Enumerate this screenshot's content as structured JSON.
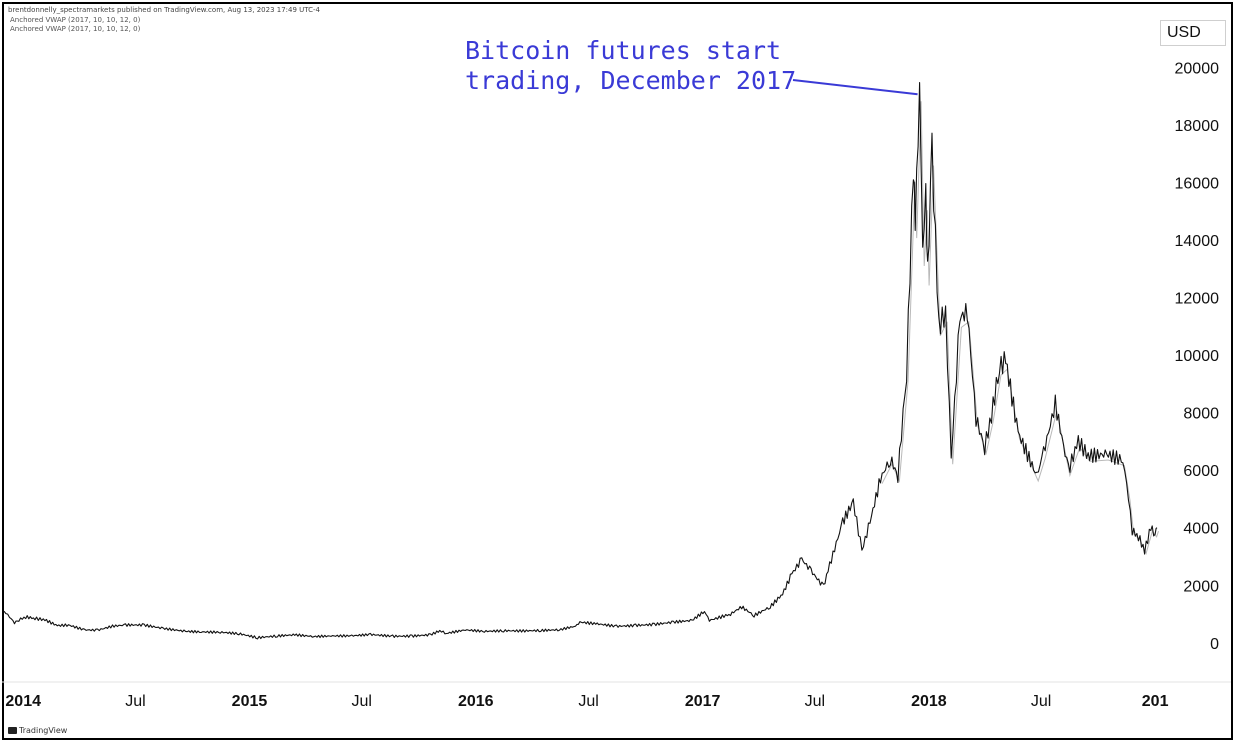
{
  "header": {
    "published_text": "brentdonnelly_spectramarkets published on TradingView.com, Aug 13, 2023 17:49 UTC-4",
    "indicators": [
      "Anchored VWAP (2017, 10, 10, 12, 0)",
      "Anchored VWAP (2017, 10, 10, 12, 0)"
    ]
  },
  "currency_label": "USD",
  "footer": {
    "brand": "TradingView"
  },
  "annotation": {
    "line1": "Bitcoin futures start",
    "line2": "trading, December 2017",
    "target": {
      "date": "2017-12-17",
      "value": 19200
    }
  },
  "colors": {
    "price": "#111111",
    "annotation": "#3a3ad6",
    "vwap": "#8a8a8a"
  },
  "chart_data": {
    "type": "line",
    "title": "",
    "xlabel": "",
    "ylabel": "",
    "ylim": [
      -700,
      20600
    ],
    "xlim": [
      "2013-12-01",
      "2019-01-04"
    ],
    "grid": false,
    "y_ticks": [
      0,
      2000,
      4000,
      6000,
      8000,
      10000,
      12000,
      14000,
      16000,
      18000,
      20000
    ],
    "x_ticks": [
      {
        "date": "2014-01-01",
        "label": "2014",
        "major": true
      },
      {
        "date": "2014-07-01",
        "label": "Jul",
        "major": false
      },
      {
        "date": "2015-01-01",
        "label": "2015",
        "major": true
      },
      {
        "date": "2015-07-01",
        "label": "Jul",
        "major": false
      },
      {
        "date": "2016-01-01",
        "label": "2016",
        "major": true
      },
      {
        "date": "2016-07-01",
        "label": "Jul",
        "major": false
      },
      {
        "date": "2017-01-01",
        "label": "2017",
        "major": true
      },
      {
        "date": "2017-07-01",
        "label": "Jul",
        "major": false
      },
      {
        "date": "2018-01-01",
        "label": "2018",
        "major": true
      },
      {
        "date": "2018-07-01",
        "label": "Jul",
        "major": false
      },
      {
        "date": "2019-01-01",
        "label": "201",
        "major": true
      }
    ],
    "series": [
      {
        "values": [
          [
            "2013-12-01",
            1100
          ],
          [
            "2013-12-10",
            900
          ],
          [
            "2013-12-18",
            700
          ],
          [
            "2013-12-25",
            800
          ],
          [
            "2014-01-05",
            900
          ],
          [
            "2014-01-20",
            850
          ],
          [
            "2014-02-05",
            800
          ],
          [
            "2014-02-25",
            600
          ],
          [
            "2014-03-15",
            620
          ],
          [
            "2014-04-10",
            450
          ],
          [
            "2014-05-01",
            440
          ],
          [
            "2014-05-25",
            580
          ],
          [
            "2014-06-15",
            620
          ],
          [
            "2014-07-15",
            620
          ],
          [
            "2014-08-15",
            500
          ],
          [
            "2014-09-20",
            400
          ],
          [
            "2014-10-15",
            380
          ],
          [
            "2014-11-15",
            370
          ],
          [
            "2014-12-15",
            320
          ],
          [
            "2015-01-14",
            180
          ],
          [
            "2015-02-15",
            240
          ],
          [
            "2015-03-15",
            280
          ],
          [
            "2015-04-15",
            220
          ],
          [
            "2015-05-15",
            240
          ],
          [
            "2015-06-15",
            245
          ],
          [
            "2015-07-15",
            290
          ],
          [
            "2015-08-20",
            230
          ],
          [
            "2015-09-20",
            235
          ],
          [
            "2015-10-20",
            280
          ],
          [
            "2015-11-04",
            420
          ],
          [
            "2015-11-15",
            330
          ],
          [
            "2015-12-15",
            450
          ],
          [
            "2016-01-15",
            400
          ],
          [
            "2016-02-15",
            420
          ],
          [
            "2016-03-15",
            415
          ],
          [
            "2016-04-15",
            430
          ],
          [
            "2016-05-15",
            455
          ],
          [
            "2016-06-10",
            580
          ],
          [
            "2016-06-17",
            720
          ],
          [
            "2016-07-15",
            660
          ],
          [
            "2016-08-15",
            575
          ],
          [
            "2016-09-15",
            605
          ],
          [
            "2016-10-15",
            640
          ],
          [
            "2016-11-15",
            720
          ],
          [
            "2016-12-15",
            780
          ],
          [
            "2017-01-04",
            1100
          ],
          [
            "2017-01-12",
            780
          ],
          [
            "2017-02-15",
            1000
          ],
          [
            "2017-03-05",
            1250
          ],
          [
            "2017-03-25",
            950
          ],
          [
            "2017-04-20",
            1250
          ],
          [
            "2017-05-10",
            1700
          ],
          [
            "2017-05-25",
            2400
          ],
          [
            "2017-06-10",
            2900
          ],
          [
            "2017-06-25",
            2500
          ],
          [
            "2017-07-15",
            1950
          ],
          [
            "2017-07-25",
            2700
          ],
          [
            "2017-08-15",
            4200
          ],
          [
            "2017-09-01",
            4900
          ],
          [
            "2017-09-15",
            3200
          ],
          [
            "2017-09-28",
            4200
          ],
          [
            "2017-10-15",
            5700
          ],
          [
            "2017-10-31",
            6400
          ],
          [
            "2017-11-12",
            5800
          ],
          [
            "2017-11-26",
            9400
          ],
          [
            "2017-12-07",
            16500
          ],
          [
            "2017-12-10",
            14500
          ],
          [
            "2017-12-17",
            19400
          ],
          [
            "2017-12-22",
            13500
          ],
          [
            "2017-12-27",
            15500
          ],
          [
            "2017-12-30",
            12800
          ],
          [
            "2018-01-06",
            17100
          ],
          [
            "2018-01-17",
            11000
          ],
          [
            "2018-01-28",
            11500
          ],
          [
            "2018-02-06",
            6400
          ],
          [
            "2018-02-20",
            11300
          ],
          [
            "2018-03-04",
            11500
          ],
          [
            "2018-03-18",
            7800
          ],
          [
            "2018-04-01",
            6800
          ],
          [
            "2018-04-12",
            7900
          ],
          [
            "2018-04-25",
            9600
          ],
          [
            "2018-05-05",
            9800
          ],
          [
            "2018-05-25",
            7300
          ],
          [
            "2018-06-24",
            5800
          ],
          [
            "2018-07-05",
            6600
          ],
          [
            "2018-07-24",
            8300
          ],
          [
            "2018-08-14",
            6000
          ],
          [
            "2018-08-30",
            7000
          ],
          [
            "2018-09-15",
            6500
          ],
          [
            "2018-10-15",
            6550
          ],
          [
            "2018-11-10",
            6350
          ],
          [
            "2018-11-19",
            5100
          ],
          [
            "2018-11-25",
            3900
          ],
          [
            "2018-12-05",
            3700
          ],
          [
            "2018-12-15",
            3200
          ],
          [
            "2018-12-25",
            4000
          ],
          [
            "2019-01-01",
            3800
          ],
          [
            "2019-01-04",
            4000
          ]
        ]
      }
    ]
  }
}
